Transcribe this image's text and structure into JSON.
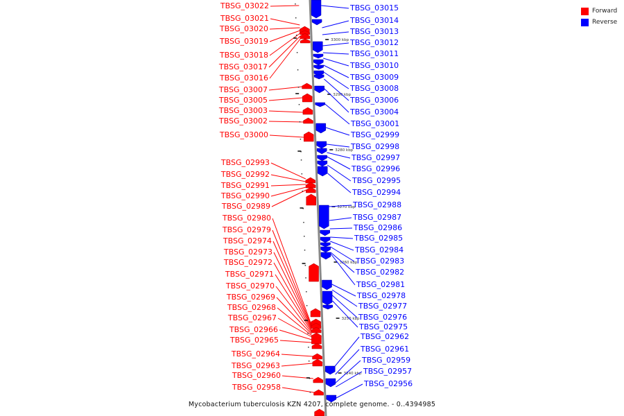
{
  "legend": {
    "forward_label": "Forward",
    "reverse_label": "Reverse",
    "forward_color": "#ff0000",
    "reverse_color": "#0000ff"
  },
  "caption": "Mycobacterium tuberculosis KZN 4207, complete genome. - 0..4394985",
  "ticks": [
    "3300 kbp",
    "3290 kbp",
    "3280 kbp",
    "3270 kbp",
    "3260 kbp",
    "3250 kbp",
    "3240 kbp"
  ],
  "forward_genes": [
    "TBSG_03022",
    "TBSG_03021",
    "TBSG_03020",
    "TBSG_03019",
    "TBSG_03018",
    "TBSG_03017",
    "TBSG_03016",
    "TBSG_03007",
    "TBSG_03005",
    "TBSG_03003",
    "TBSG_03002",
    "TBSG_03000",
    "TBSG_02993",
    "TBSG_02992",
    "TBSG_02991",
    "TBSG_02990",
    "TBSG_02989",
    "TBSG_02980",
    "TBSG_02979",
    "TBSG_02974",
    "TBSG_02973",
    "TBSG_02972",
    "TBSG_02971",
    "TBSG_02970",
    "TBSG_02969",
    "TBSG_02968",
    "TBSG_02967",
    "TBSG_02966",
    "TBSG_02965",
    "TBSG_02964",
    "TBSG_02963",
    "TBSG_02960",
    "TBSG_02958"
  ],
  "reverse_genes": [
    "TBSG_03015",
    "TBSG_03014",
    "TBSG_03013",
    "TBSG_03012",
    "TBSG_03011",
    "TBSG_03010",
    "TBSG_03009",
    "TBSG_03008",
    "TBSG_03006",
    "TBSG_03004",
    "TBSG_03001",
    "TBSG_02999",
    "TBSG_02998",
    "TBSG_02997",
    "TBSG_02996",
    "TBSG_02995",
    "TBSG_02994",
    "TBSG_02988",
    "TBSG_02987",
    "TBSG_02986",
    "TBSG_02985",
    "TBSG_02984",
    "TBSG_02983",
    "TBSG_02982",
    "TBSG_02981",
    "TBSG_02978",
    "TBSG_02977",
    "TBSG_02976",
    "TBSG_02975",
    "TBSG_02962",
    "TBSG_02961",
    "TBSG_02959",
    "TBSG_02957",
    "TBSG_02956"
  ]
}
